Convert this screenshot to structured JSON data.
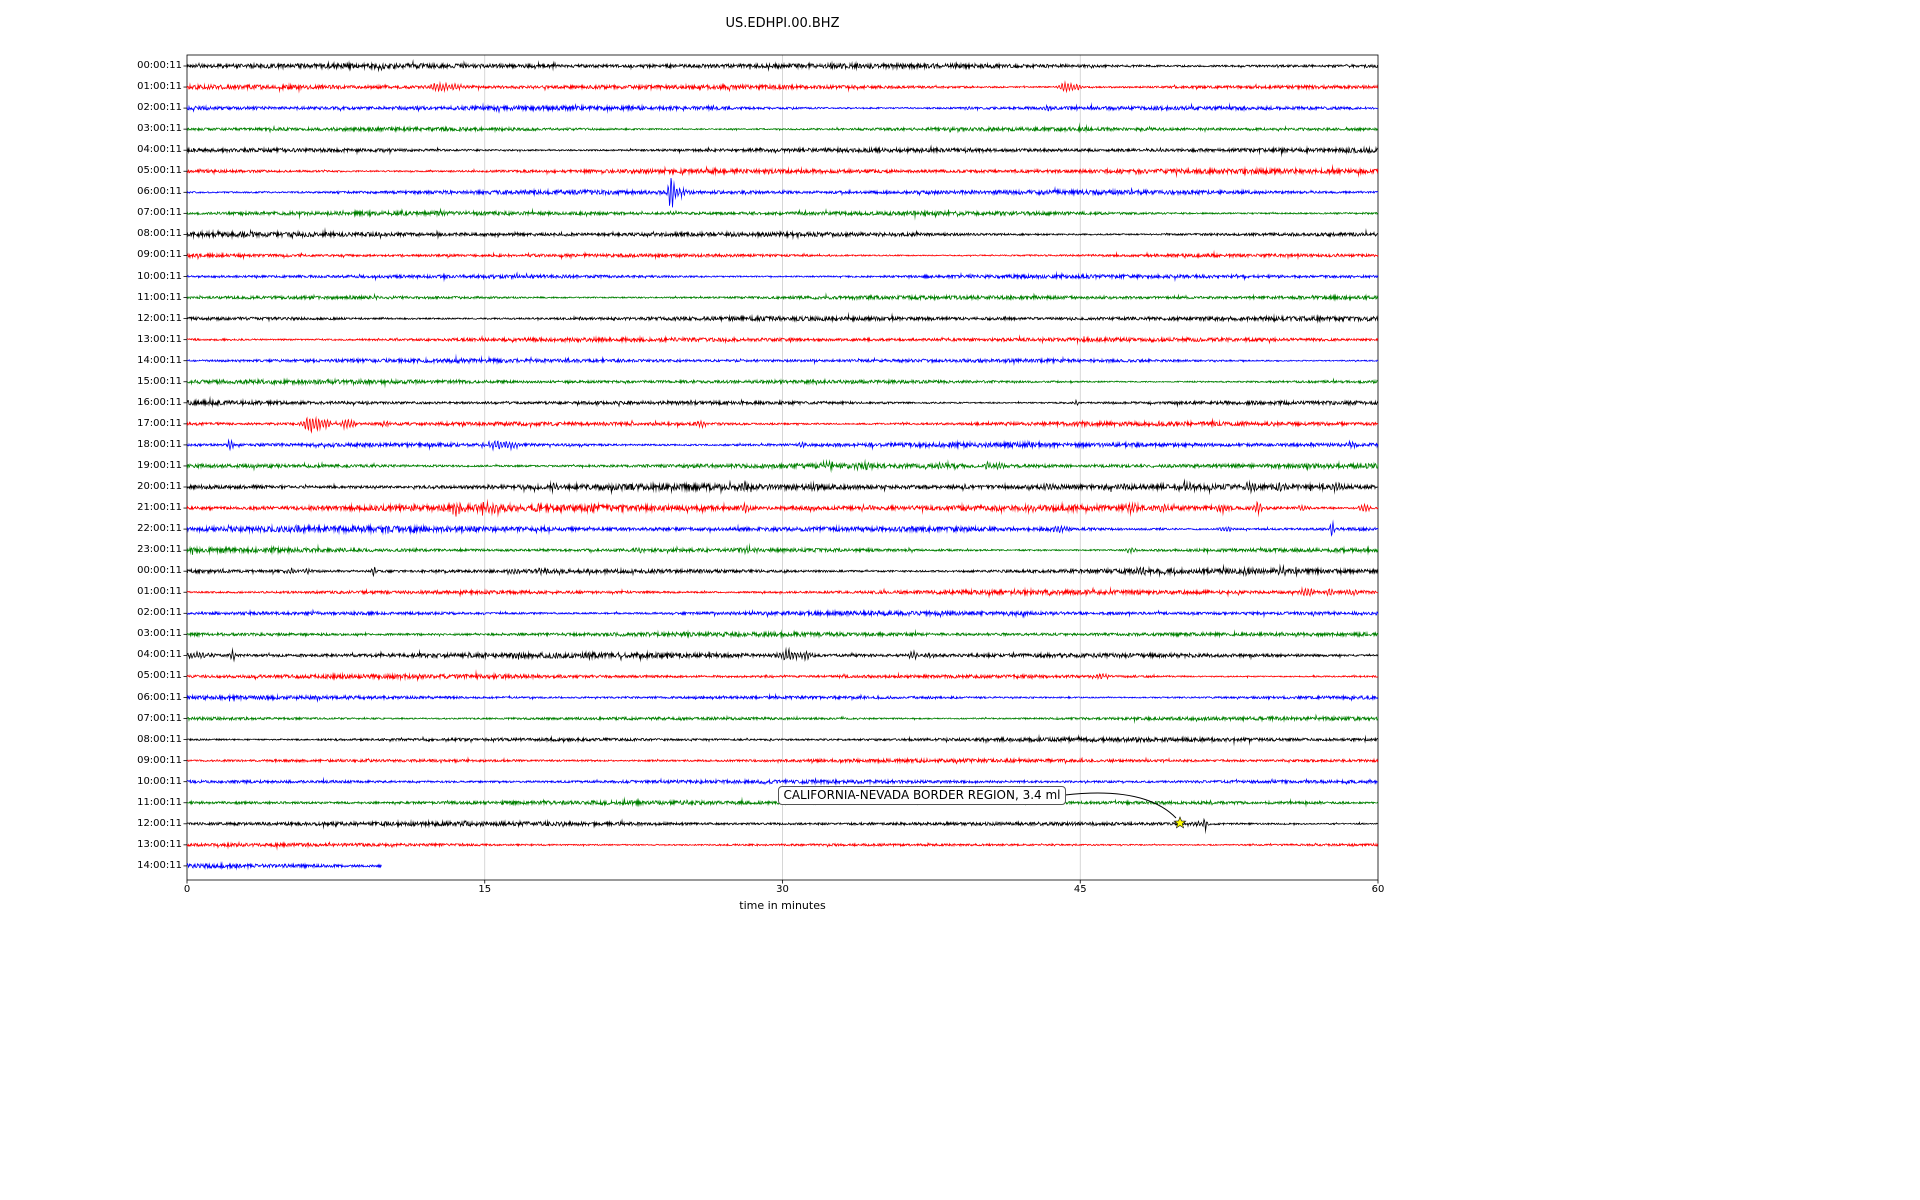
{
  "chart_data": {
    "type": "line",
    "subtype": "seismogram-dayplot",
    "title": "US.EDHPI.00.BHZ",
    "x_axis": {
      "label": "time in minutes",
      "ticks": [
        0,
        15,
        30,
        45,
        60
      ],
      "range": [
        0,
        60
      ]
    },
    "grid": {
      "vertical_gridlines_minutes": [
        15,
        30,
        45
      ],
      "color": "#cccccc"
    },
    "color_cycle": [
      "#000000",
      "#ff0000",
      "#0000ff",
      "#008000"
    ],
    "annotation": {
      "text": "CALIFORNIA-NEVADA BORDER REGION, 3.4 ml",
      "row_index": 36,
      "minute": 50.0,
      "marker": "star",
      "marker_color": "#ffff00"
    },
    "rows": [
      {
        "label": "00:00:11",
        "color": "#000000",
        "amp": 1.7,
        "events": []
      },
      {
        "label": "01:00:11",
        "color": "#ff0000",
        "amp": 1.5,
        "events": [
          [
            12.7,
            5,
            0.35
          ],
          [
            13.6,
            3,
            0.2
          ],
          [
            44.3,
            6,
            0.25
          ],
          [
            44.9,
            3,
            0.15
          ]
        ]
      },
      {
        "label": "02:00:11",
        "color": "#0000ff",
        "amp": 1.7,
        "events": [
          [
            39.4,
            2.5,
            0.15
          ],
          [
            43.3,
            2.5,
            0.2
          ]
        ]
      },
      {
        "label": "03:00:11",
        "color": "#008000",
        "amp": 1.5,
        "events": []
      },
      {
        "label": "04:00:11",
        "color": "#000000",
        "amp": 1.6,
        "events": []
      },
      {
        "label": "05:00:11",
        "color": "#ff0000",
        "amp": 1.6,
        "events": []
      },
      {
        "label": "06:00:11",
        "color": "#0000ff",
        "amp": 1.5,
        "events": [
          [
            24.4,
            17,
            0.12
          ],
          [
            24.8,
            4,
            0.35
          ]
        ]
      },
      {
        "label": "07:00:11",
        "color": "#008000",
        "amp": 1.4,
        "events": []
      },
      {
        "label": "08:00:11",
        "color": "#000000",
        "amp": 1.6,
        "events": []
      },
      {
        "label": "09:00:11",
        "color": "#ff0000",
        "amp": 1.3,
        "events": []
      },
      {
        "label": "10:00:11",
        "color": "#0000ff",
        "amp": 1.5,
        "events": []
      },
      {
        "label": "11:00:11",
        "color": "#008000",
        "amp": 1.4,
        "events": []
      },
      {
        "label": "12:00:11",
        "color": "#000000",
        "amp": 1.5,
        "events": []
      },
      {
        "label": "13:00:11",
        "color": "#ff0000",
        "amp": 1.4,
        "events": []
      },
      {
        "label": "14:00:11",
        "color": "#0000ff",
        "amp": 1.3,
        "events": []
      },
      {
        "label": "15:00:11",
        "color": "#008000",
        "amp": 1.4,
        "events": []
      },
      {
        "label": "16:00:11",
        "color": "#000000",
        "amp": 1.5,
        "events": [
          [
            27.9,
            2.5,
            0.12
          ],
          [
            44.8,
            2.5,
            0.12
          ]
        ]
      },
      {
        "label": "17:00:11",
        "color": "#ff0000",
        "amp": 1.7,
        "events": [
          [
            6.3,
            9,
            0.3
          ],
          [
            7.0,
            4,
            0.2
          ],
          [
            8.1,
            5,
            0.25
          ],
          [
            10.0,
            2.5,
            0.15
          ],
          [
            25.9,
            3.5,
            0.2
          ]
        ]
      },
      {
        "label": "18:00:11",
        "color": "#0000ff",
        "amp": 1.7,
        "events": [
          [
            2.2,
            7,
            0.1
          ],
          [
            15.5,
            4,
            0.4
          ],
          [
            16.3,
            3,
            0.3
          ],
          [
            31.0,
            2,
            0.15
          ],
          [
            58.6,
            3,
            0.2
          ]
        ]
      },
      {
        "label": "19:00:11",
        "color": "#008000",
        "amp": 1.6,
        "events": [
          [
            32.3,
            3,
            0.3
          ],
          [
            34.1,
            3.5,
            0.3
          ],
          [
            38.0,
            3,
            0.25
          ],
          [
            40.3,
            5,
            0.12
          ],
          [
            40.9,
            3,
            0.2
          ]
        ]
      },
      {
        "label": "20:00:11",
        "color": "#000000",
        "amp": 2.0,
        "events": [
          [
            18.5,
            5,
            0.12
          ],
          [
            28.0,
            4,
            0.15
          ],
          [
            31.6,
            3,
            0.12
          ],
          [
            43.5,
            2.5,
            0.4
          ],
          [
            47.0,
            2.5,
            0.3
          ],
          [
            50.3,
            4,
            0.3
          ],
          [
            53.6,
            4,
            0.25
          ],
          [
            55.0,
            3,
            0.2
          ],
          [
            58.0,
            3,
            0.3
          ]
        ]
      },
      {
        "label": "21:00:11",
        "color": "#ff0000",
        "amp": 2.2,
        "events": [
          [
            13.6,
            6,
            0.3
          ],
          [
            15.2,
            4,
            0.3
          ],
          [
            20.5,
            2.5,
            0.2
          ],
          [
            28.1,
            5,
            0.15
          ],
          [
            34.2,
            2.5,
            0.2
          ],
          [
            42.6,
            3,
            0.25
          ],
          [
            45.5,
            3,
            0.2
          ],
          [
            47.6,
            4,
            0.25
          ],
          [
            49.2,
            3,
            0.2
          ],
          [
            52.1,
            4,
            0.25
          ],
          [
            53.9,
            6,
            0.2
          ],
          [
            56.2,
            3,
            0.25
          ],
          [
            59.3,
            4,
            0.2
          ]
        ]
      },
      {
        "label": "22:00:11",
        "color": "#0000ff",
        "amp": 2.0,
        "events": [
          [
            5.6,
            3,
            0.2
          ],
          [
            44.0,
            2.5,
            0.3
          ],
          [
            52.3,
            3,
            0.25
          ],
          [
            57.7,
            8,
            0.1
          ]
        ]
      },
      {
        "label": "23:00:11",
        "color": "#008000",
        "amp": 1.6,
        "events": [
          [
            22.8,
            3,
            0.2
          ],
          [
            28.3,
            3.5,
            0.25
          ],
          [
            47.5,
            2.5,
            0.2
          ]
        ]
      },
      {
        "label": "00:00:11",
        "color": "#000000",
        "amp": 1.8,
        "events": [
          [
            5.2,
            3.5,
            0.2
          ],
          [
            6.1,
            3,
            0.15
          ],
          [
            9.4,
            7,
            0.08
          ],
          [
            16.3,
            3,
            0.25
          ],
          [
            17.9,
            3,
            0.2
          ],
          [
            48.2,
            3,
            0.3
          ],
          [
            53.6,
            3.5,
            0.3
          ],
          [
            55.1,
            3.5,
            0.25
          ]
        ]
      },
      {
        "label": "01:00:11",
        "color": "#ff0000",
        "amp": 1.6,
        "events": [
          [
            56.4,
            4,
            0.25
          ],
          [
            57.6,
            4,
            0.2
          ],
          [
            58.7,
            3,
            0.2
          ]
        ]
      },
      {
        "label": "02:00:11",
        "color": "#0000ff",
        "amp": 1.4,
        "events": []
      },
      {
        "label": "03:00:11",
        "color": "#008000",
        "amp": 1.4,
        "events": []
      },
      {
        "label": "04:00:11",
        "color": "#000000",
        "amp": 1.7,
        "events": [
          [
            0.5,
            3,
            0.5
          ],
          [
            2.3,
            7,
            0.08
          ],
          [
            30.3,
            5.5,
            0.3
          ],
          [
            31.1,
            4,
            0.25
          ],
          [
            36.6,
            5,
            0.15
          ],
          [
            37.4,
            3,
            0.2
          ]
        ]
      },
      {
        "label": "05:00:11",
        "color": "#ff0000",
        "amp": 1.4,
        "events": [
          [
            46.0,
            2.5,
            0.3
          ]
        ]
      },
      {
        "label": "06:00:11",
        "color": "#0000ff",
        "amp": 1.3,
        "events": []
      },
      {
        "label": "07:00:11",
        "color": "#008000",
        "amp": 1.3,
        "events": []
      },
      {
        "label": "08:00:11",
        "color": "#000000",
        "amp": 1.4,
        "events": []
      },
      {
        "label": "09:00:11",
        "color": "#ff0000",
        "amp": 1.2,
        "events": []
      },
      {
        "label": "10:00:11",
        "color": "#0000ff",
        "amp": 1.2,
        "events": []
      },
      {
        "label": "11:00:11",
        "color": "#008000",
        "amp": 1.3,
        "events": []
      },
      {
        "label": "12:00:11",
        "color": "#000000",
        "amp": 1.5,
        "events": [
          [
            50.9,
            2,
            0.3
          ],
          [
            51.3,
            6,
            0.1
          ]
        ]
      },
      {
        "label": "13:00:11",
        "color": "#ff0000",
        "amp": 1.1,
        "events": []
      },
      {
        "label": "14:00:11",
        "color": "#0000ff",
        "amp": 1.6,
        "end": 9.8,
        "events": []
      }
    ]
  }
}
